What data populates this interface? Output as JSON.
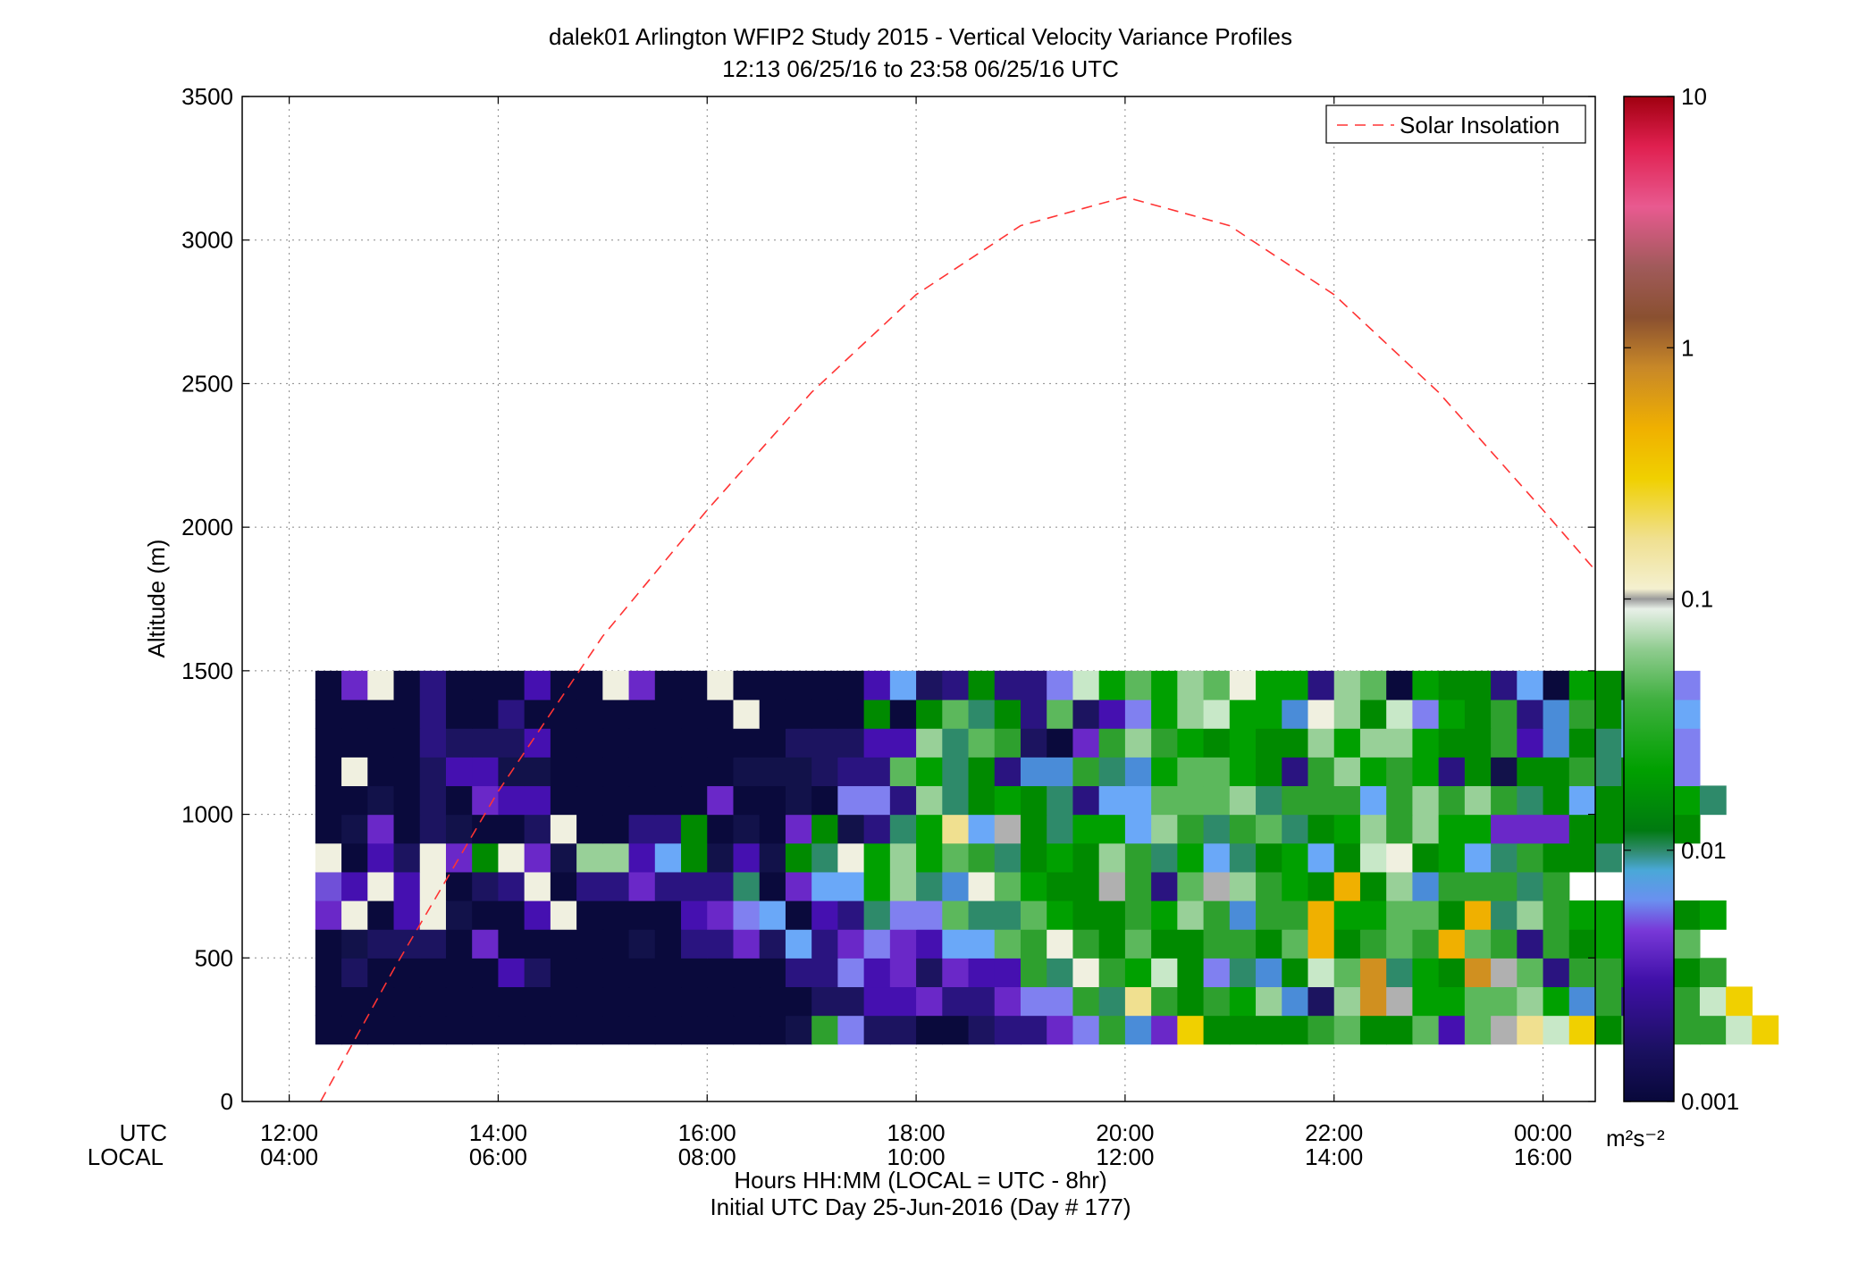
{
  "chart_data": {
    "type": "heatmap",
    "title": "dalek01 Arlington WFIP2 Study 2015 - Vertical Velocity Variance Profiles",
    "subtitle": "12:13 06/25/16 to 23:58 06/25/16  UTC",
    "ylabel": "Altitude (m)",
    "xlabel": "Hours HH:MM  (LOCAL = UTC - 8hr)",
    "xlabel2": "Initial UTC Day 25-Jun-2016 (Day # 177)",
    "x_row_labels": [
      "UTC",
      "LOCAL"
    ],
    "xlim": [
      11.55,
      24.5
    ],
    "ylim": [
      0,
      3500
    ],
    "grid": true,
    "x_ticks_utc": [
      "12:00",
      "14:00",
      "16:00",
      "18:00",
      "20:00",
      "22:00",
      "00:00"
    ],
    "x_ticks_local": [
      "04:00",
      "06:00",
      "08:00",
      "10:00",
      "12:00",
      "14:00",
      "16:00"
    ],
    "x_tick_hours": [
      12,
      14,
      16,
      18,
      20,
      22,
      24
    ],
    "y_ticks": [
      0,
      500,
      1000,
      1500,
      2000,
      2500,
      3000,
      3500
    ],
    "legend": {
      "position": "top-right",
      "entries": [
        "Solar Insolation"
      ]
    },
    "colorbar": {
      "scale": "log",
      "range": [
        0.001,
        10
      ],
      "ticks": [
        "10",
        "1",
        "0.1",
        "0.01",
        "0.001"
      ],
      "tick_values": [
        10,
        1,
        0.1,
        0.01,
        0.001
      ],
      "unit": "m²s⁻²"
    },
    "solar_insolation_curve": {
      "style": "dashed",
      "color": "#ff3333",
      "x": [
        12.3,
        13,
        14,
        15,
        16,
        17,
        18,
        19,
        20,
        21,
        22,
        23,
        24,
        24.5
      ],
      "y": [
        0,
        460,
        1080,
        1620,
        2060,
        2470,
        2810,
        3050,
        3150,
        3050,
        2810,
        2470,
        2060,
        1850
      ]
    },
    "cell_grid": {
      "x_start_hour": 12.25,
      "x_step_hours": 0.25,
      "y_start_m": 200,
      "y_step_m": 100,
      "value_units": "m^2 s^-2",
      "palette": {
        "D": "#0a0a3c",
        "d": "#12124a",
        "N": "#1c1460",
        "n": "#2a1480",
        "P": "#4510b0",
        "p": "#6a28c8",
        "V": "#7050d8",
        "v": "#8080f0",
        "B": "#6aa8f8",
        "b": "#4a8cd8",
        "T": "#2e8a6a",
        "G": "#008a00",
        "g": "#00a000",
        "h": "#2ea02e",
        "l": "#5cb85c",
        "m": "#98d098",
        "k": "#c8e8c8",
        "w": "#f0f0e0",
        "a": "#b0b0b0",
        "y": "#f0e090",
        "Y": "#f0d000",
        "O": "#f0b000",
        "o": "#d09020"
      },
      "rows": [
        "DDDDDDDDDDDDDDDDDDdhvNNDDNnnpvhbpYGGGGhlGGlPlaykYGlPhhkY",
        "DDDDDDDDDDDDDDDDDDDNNPPpnnpvvhTyhGhgmbNmoaggllmgbhnNhkY",
        "DNDDDDDPNDDDDDDDDDnnvPpNpPPhTwhgkGvTbGkloTgGoalnhhGGGh",
        "DdNNNDpDDDDDdDnnpNBnpvpPBBlhwhGlGGhhGlOGhlhOlhnhGgGhl",
        "pwDPwdDDPwDDDDPpvBDPnTvvlTTlgGGhgmhbhhOggllGOTmhggGgGg",
        "VPwPwDNnwDnnpnnnTDpBBgmTbwlgGGahnlamhgGOGmbhhhTh",
        "wDPNwpGwpdmmPBGdPdGTwgmglhTGgGmhTgBTGgBGkwGgBThGGT",
        "DdpDNdDDNwDDnnGDdDpGdnTgyBaGTggBmhThlTGgmhmggpppGGGGG",
        "DDdDNDpPPDDDDDDpDDdDvvnmTGgGTnBBlllmThhhBhmhmhTGBGGTgT",
        "DwDDNPPddDDDDDDDdddNnnlgTGnbbhTbgllgGnhmghgnGdGGhTGnv",
        "DDDDnNNNPDDDDDDDDDNNNPPmTlhNDphmhgGgGGmgmmgGGhPbGTBPv",
        "DDDDnDDnDDDDDDDDwDDDDGDGlTGnlNPvgmkggbwmGkvgGhnbhGBPB",
        "DpwDnDDDPDDwpDDwDDDDDPBNnGnnvkglgmlwggnmlDgGGnBDgGDpv",
        "",
        "",
        "",
        "",
        "",
        ""
      ]
    }
  }
}
